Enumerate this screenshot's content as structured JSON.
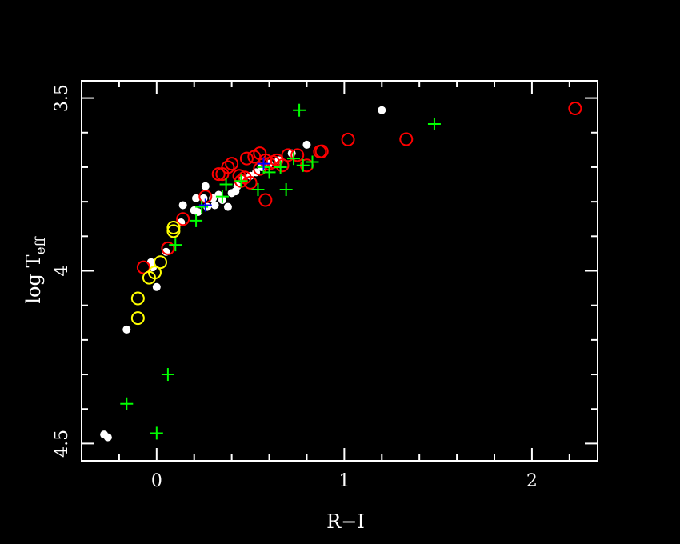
{
  "chart_data": {
    "type": "scatter",
    "title": "",
    "xlabel": "R−I",
    "ylabel_main": "log T",
    "ylabel_sub": "eff",
    "xlim": [
      -0.4,
      2.35
    ],
    "ylim": [
      4.55,
      3.45
    ],
    "y_inverted": true,
    "grid": false,
    "x_tick_labels": [
      "0",
      "1",
      "2"
    ],
    "x_tick_values": [
      0,
      1,
      2
    ],
    "y_tick_labels": [
      "3.5",
      "4",
      "4.5"
    ],
    "y_tick_values": [
      3.5,
      4.0,
      4.5
    ],
    "colors": {
      "background": "#000000",
      "axis": "#ffffff",
      "white_dots": "#ffffff",
      "red_circles": "#ff0000",
      "yellow_circles": "#ffff00",
      "green_crosses": "#00ff00",
      "blue_crosses": "#0000ff"
    },
    "series": [
      {
        "marker": "dot",
        "color": "#ffffff",
        "points": [
          [
            -0.28,
            4.474
          ],
          [
            -0.26,
            4.482
          ],
          [
            -0.16,
            4.17
          ],
          [
            -0.02,
            3.99
          ],
          [
            -0.03,
            3.975
          ],
          [
            0.0,
            4.047
          ],
          [
            0.05,
            3.945
          ],
          [
            0.13,
            3.86
          ],
          [
            0.14,
            3.81
          ],
          [
            0.2,
            3.825
          ],
          [
            0.21,
            3.79
          ],
          [
            0.25,
            3.79
          ],
          [
            0.26,
            3.755
          ],
          [
            0.3,
            3.79
          ],
          [
            0.31,
            3.81
          ],
          [
            0.33,
            3.78
          ],
          [
            0.38,
            3.815
          ],
          [
            0.4,
            3.775
          ],
          [
            0.43,
            3.755
          ],
          [
            0.46,
            3.735
          ],
          [
            0.5,
            3.725
          ],
          [
            0.53,
            3.715
          ],
          [
            0.56,
            3.7
          ],
          [
            0.6,
            3.69
          ],
          [
            0.65,
            3.68
          ],
          [
            0.72,
            3.66
          ],
          [
            0.8,
            3.635
          ],
          [
            1.2,
            3.535
          ],
          [
            0.22,
            3.83
          ],
          [
            0.27,
            3.815
          ],
          [
            0.35,
            3.795
          ],
          [
            0.42,
            3.77
          ]
        ]
      },
      {
        "marker": "open-circle",
        "color": "#ff0000",
        "points": [
          [
            -0.07,
            3.99
          ],
          [
            0.06,
            3.935
          ],
          [
            0.14,
            3.85
          ],
          [
            0.26,
            3.785
          ],
          [
            0.33,
            3.72
          ],
          [
            0.35,
            3.72
          ],
          [
            0.38,
            3.7
          ],
          [
            0.45,
            3.74
          ],
          [
            0.47,
            3.73
          ],
          [
            0.5,
            3.745
          ],
          [
            0.48,
            3.675
          ],
          [
            0.52,
            3.67
          ],
          [
            0.55,
            3.66
          ],
          [
            0.55,
            3.705
          ],
          [
            0.58,
            3.68
          ],
          [
            0.6,
            3.69
          ],
          [
            0.62,
            3.685
          ],
          [
            0.64,
            3.68
          ],
          [
            0.67,
            3.695
          ],
          [
            0.7,
            3.665
          ],
          [
            0.75,
            3.665
          ],
          [
            0.8,
            3.695
          ],
          [
            0.87,
            3.655
          ],
          [
            0.88,
            3.654
          ],
          [
            0.58,
            3.795
          ],
          [
            1.02,
            3.62
          ],
          [
            1.33,
            3.619
          ],
          [
            2.23,
            3.53
          ],
          [
            0.4,
            3.69
          ],
          [
            0.44,
            3.725
          ]
        ]
      },
      {
        "marker": "open-circle",
        "color": "#ffff00",
        "points": [
          [
            -0.1,
            4.08
          ],
          [
            -0.1,
            4.137
          ],
          [
            -0.04,
            4.02
          ],
          [
            -0.01,
            4.005
          ],
          [
            0.09,
            3.885
          ],
          [
            0.09,
            3.875
          ],
          [
            0.02,
            3.975
          ]
        ]
      },
      {
        "marker": "plus",
        "color": "#00ff00",
        "points": [
          [
            -0.16,
            4.385
          ],
          [
            0.0,
            4.47
          ],
          [
            0.06,
            4.3
          ],
          [
            0.1,
            3.925
          ],
          [
            0.21,
            3.855
          ],
          [
            0.24,
            3.815
          ],
          [
            0.35,
            3.785
          ],
          [
            0.37,
            3.75
          ],
          [
            0.45,
            3.74
          ],
          [
            0.54,
            3.765
          ],
          [
            0.6,
            3.715
          ],
          [
            0.66,
            3.7
          ],
          [
            0.69,
            3.765
          ],
          [
            0.76,
            3.535
          ],
          [
            0.78,
            3.695
          ],
          [
            0.83,
            3.685
          ],
          [
            1.48,
            3.575
          ],
          [
            0.73,
            3.675
          ],
          [
            0.57,
            3.7
          ]
        ]
      },
      {
        "marker": "plus",
        "color": "#0000ff",
        "points": [
          [
            0.26,
            3.81
          ],
          [
            0.57,
            3.69
          ]
        ]
      }
    ]
  }
}
